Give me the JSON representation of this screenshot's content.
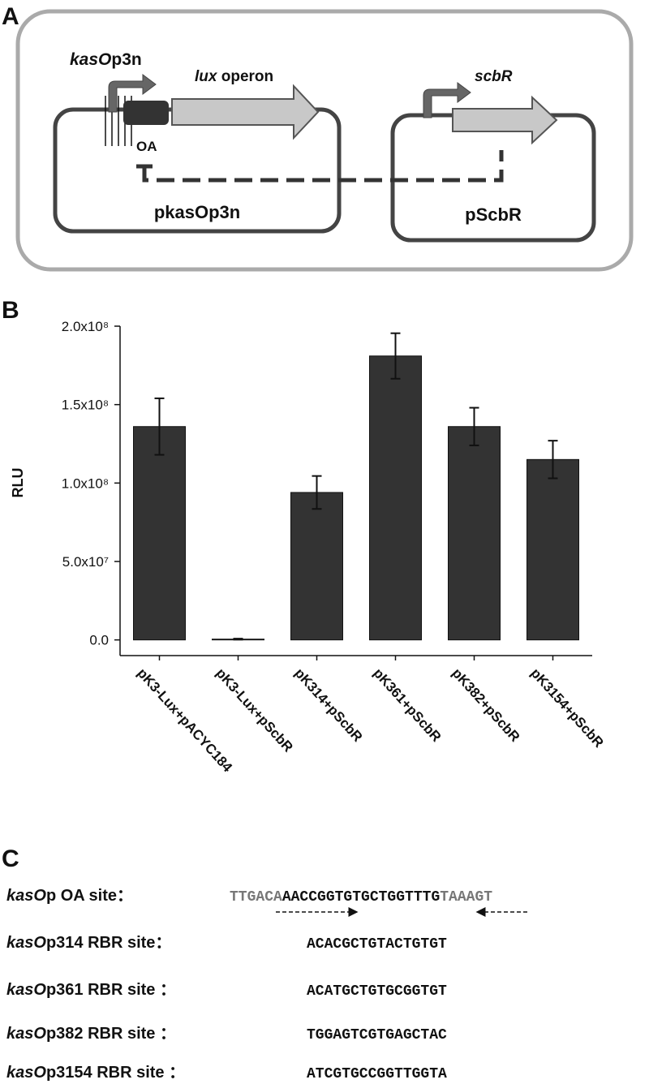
{
  "panel_labels": [
    "A",
    "B",
    "C"
  ],
  "diagram": {
    "promoter": {
      "italic": "kasO",
      "rest": "p3n"
    },
    "operon": {
      "italic": "lux",
      "rest": " operon"
    },
    "gene": "scbR",
    "site": "OA",
    "plasmid_left": "pkasOp3n",
    "plasmid_right": "pScbR"
  },
  "chart_data": {
    "type": "bar",
    "ylabel": "RLU",
    "categories": [
      "pK3-Lux+pACYC184",
      "pK3-Lux+pScbR",
      "pK314+pScbR",
      "pK361+pScbR",
      "pK382+pScbR",
      "pK3154+pScbR"
    ],
    "values": [
      136000000,
      500000,
      94000000,
      181000000,
      136000000,
      115000000
    ],
    "errors": [
      18000000,
      300000,
      10500000,
      14500000,
      12000000,
      12000000
    ],
    "color": "#333333",
    "ylim": [
      -10000000,
      200000000
    ],
    "yticks": [
      {
        "value": 0,
        "label": "0.0"
      },
      {
        "value": 50000000,
        "label": "5.0x10⁷"
      },
      {
        "value": 100000000,
        "label": "1.0x10⁸"
      },
      {
        "value": 150000000,
        "label": "1.5x10⁸"
      },
      {
        "value": 200000000,
        "label": "2.0x10⁸"
      }
    ],
    "grid": false
  },
  "sequences": {
    "rows": [
      {
        "label": {
          "italic": "kasO",
          "rest": "p OA  site："
        },
        "segments": [
          {
            "text": "TTGACA",
            "color": "#777777"
          },
          {
            "text": "AACCGGTGTGCTGGTTTG",
            "color": "#111111"
          },
          {
            "text": "TAAAGT",
            "color": "#777777"
          }
        ]
      },
      {
        "label": {
          "italic": "kasO",
          "rest": "p314 RBR site："
        },
        "segments": [
          {
            "text": "ACACGCTGTACTGTGT",
            "color": "#111111"
          }
        ]
      },
      {
        "label": {
          "italic": "kasO",
          "rest": "p361 RBR site ："
        },
        "segments": [
          {
            "text": "ACATGCTGTGCGGTGT",
            "color": "#111111"
          }
        ]
      },
      {
        "label": {
          "italic": "kasO",
          "rest": "p382 RBR site ："
        },
        "segments": [
          {
            "text": "TGGAGTCGTGAGCTAC",
            "color": "#111111"
          }
        ]
      },
      {
        "label": {
          "italic": "kasO",
          "rest": "p3154 RBR site ："
        },
        "segments": [
          {
            "text": "ATCGTGCCGGTTGGTA",
            "color": "#111111"
          }
        ]
      }
    ]
  }
}
